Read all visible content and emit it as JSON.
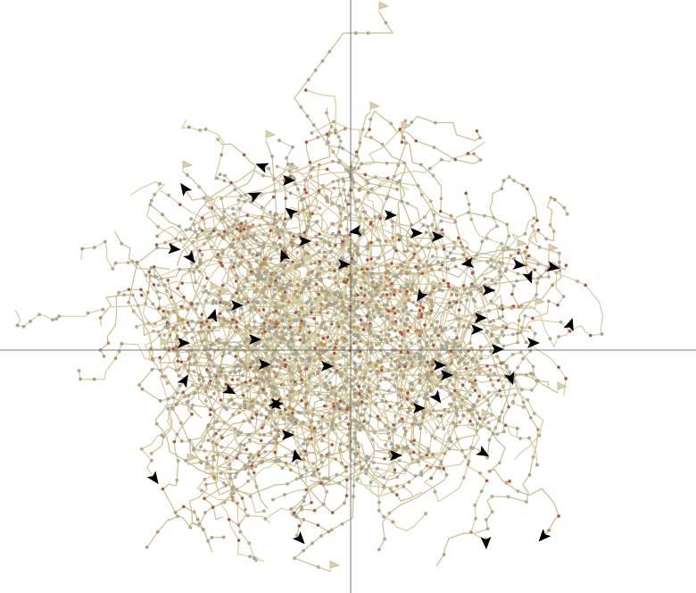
{
  "canvas": {
    "background": "#ffffff"
  },
  "colors": {
    "axis": "#555555",
    "path": "#d6cca6",
    "path_dark": "#c9bd92",
    "flag": "#d9cfa8",
    "node_gray": "#a8aa9c",
    "node_tan": "#c8b07a",
    "node_orange": "#d98a3c",
    "node_red": "#c0462a",
    "arrow": "#000000"
  },
  "diagram": {
    "kind": "random-walk-trajectories",
    "has_axes": true,
    "labels": []
  }
}
